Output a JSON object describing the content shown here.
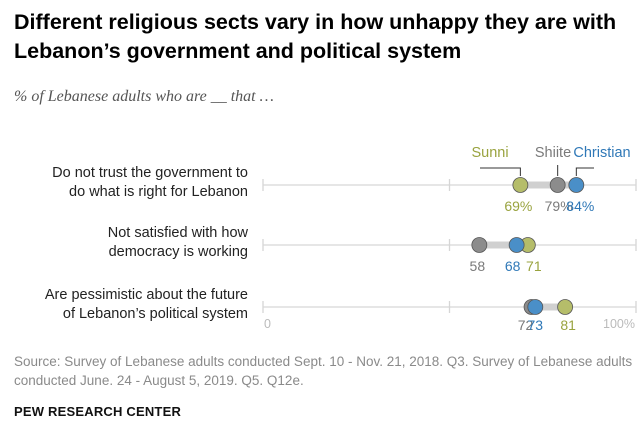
{
  "title": "Different religious sects vary in how unhappy they are with Lebanon’s government and political system",
  "subtitle": "% of Lebanese adults who are __ that …",
  "source": "Source: Survey of Lebanese adults conducted Sept. 10 - Nov. 21, 2018. Q3. Survey of Lebanese adults conducted June. 24 - August 5, 2019. Q5. Q12e.",
  "org": "PEW RESEARCH CENTER",
  "colors": {
    "Sunni": "#b5bd6a",
    "Shiite": "#8c8c8c",
    "Christian": "#4a8fc8",
    "Sunni_text": "#99a33f",
    "Shiite_text": "#7a7a7a",
    "Christian_text": "#2f78b7"
  },
  "chart_data": {
    "type": "scatter",
    "categories": [
      "Do not trust the government to do what is right for Lebanon",
      "Not satisfied with how democracy is working",
      "Are pessimistic about the future of Lebanon’s political system"
    ],
    "category_lines": [
      [
        "Do not trust the government to",
        "do what is right for Lebanon"
      ],
      [
        "Not satisfied with how",
        "democracy is working"
      ],
      [
        "Are pessimistic about the future",
        "of Lebanon’s political system"
      ]
    ],
    "series": [
      {
        "name": "Sunni",
        "values": [
          69,
          71,
          81
        ]
      },
      {
        "name": "Shiite",
        "values": [
          79,
          58,
          72
        ]
      },
      {
        "name": "Christian",
        "values": [
          84,
          68,
          73
        ]
      }
    ],
    "value_labels": [
      [
        "69%",
        "79%",
        "84%"
      ],
      [
        "71",
        "58",
        "68"
      ],
      [
        "81",
        "72",
        "73"
      ]
    ],
    "xlim": [
      0,
      100
    ],
    "tick_labels": [
      "0",
      "100%"
    ],
    "legend": "top, above first row"
  }
}
